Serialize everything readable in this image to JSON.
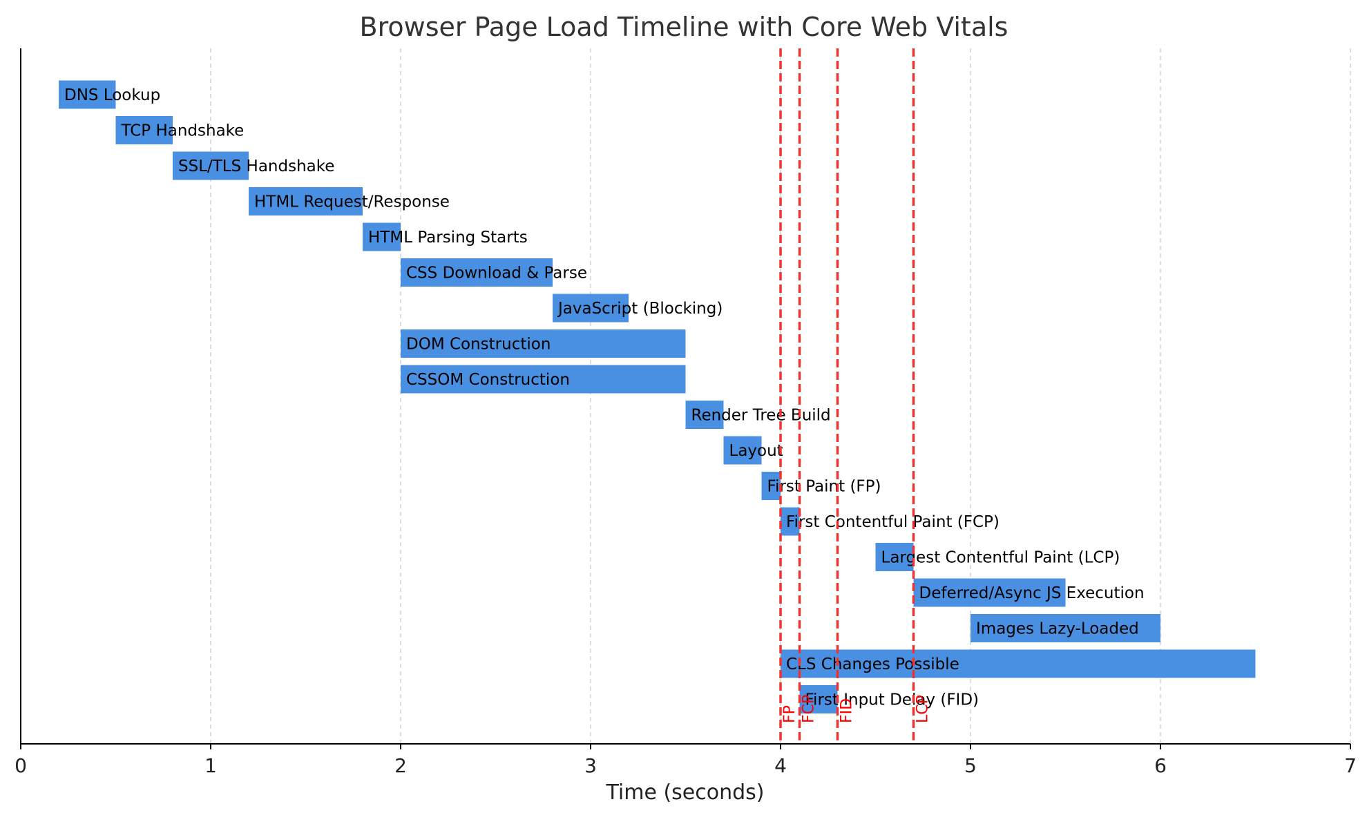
{
  "chart_data": {
    "type": "bar",
    "orientation": "horizontal-timeline",
    "title": "Browser Page Load Timeline with Core Web Vitals",
    "xlabel": "Time (seconds)",
    "xlim": [
      0,
      7
    ],
    "xticks": [
      0,
      1,
      2,
      3,
      4,
      5,
      6,
      7
    ],
    "grid": "x-dashed",
    "bar_color": "#4a90e2",
    "tasks": [
      {
        "label": "DNS Lookup",
        "start": 0.2,
        "end": 0.5
      },
      {
        "label": "TCP Handshake",
        "start": 0.5,
        "end": 0.8
      },
      {
        "label": "SSL/TLS Handshake",
        "start": 0.8,
        "end": 1.2
      },
      {
        "label": "HTML Request/Response",
        "start": 1.2,
        "end": 1.8
      },
      {
        "label": "HTML Parsing Starts",
        "start": 1.8,
        "end": 2.0
      },
      {
        "label": "CSS Download & Parse",
        "start": 2.0,
        "end": 2.8
      },
      {
        "label": "JavaScript (Blocking)",
        "start": 2.8,
        "end": 3.2
      },
      {
        "label": "DOM Construction",
        "start": 2.0,
        "end": 3.5
      },
      {
        "label": "CSSOM Construction",
        "start": 2.0,
        "end": 3.5
      },
      {
        "label": "Render Tree Build",
        "start": 3.5,
        "end": 3.7
      },
      {
        "label": "Layout",
        "start": 3.7,
        "end": 3.9
      },
      {
        "label": "First Paint (FP)",
        "start": 3.9,
        "end": 4.0
      },
      {
        "label": "First Contentful Paint (FCP)",
        "start": 4.0,
        "end": 4.1
      },
      {
        "label": "Largest Contentful Paint (LCP)",
        "start": 4.5,
        "end": 4.7
      },
      {
        "label": "Deferred/Async JS Execution",
        "start": 4.7,
        "end": 5.5
      },
      {
        "label": "Images Lazy-Loaded",
        "start": 5.0,
        "end": 6.0
      },
      {
        "label": "CLS Changes Possible",
        "start": 4.0,
        "end": 6.5
      },
      {
        "label": "First Input Delay (FID)",
        "start": 4.1,
        "end": 4.3
      }
    ],
    "markers": [
      {
        "label": "FP",
        "x": 4.0
      },
      {
        "label": "FCP",
        "x": 4.1
      },
      {
        "label": "FID",
        "x": 4.3
      },
      {
        "label": "LCP",
        "x": 4.7
      }
    ],
    "marker_color": "#ee3333"
  }
}
